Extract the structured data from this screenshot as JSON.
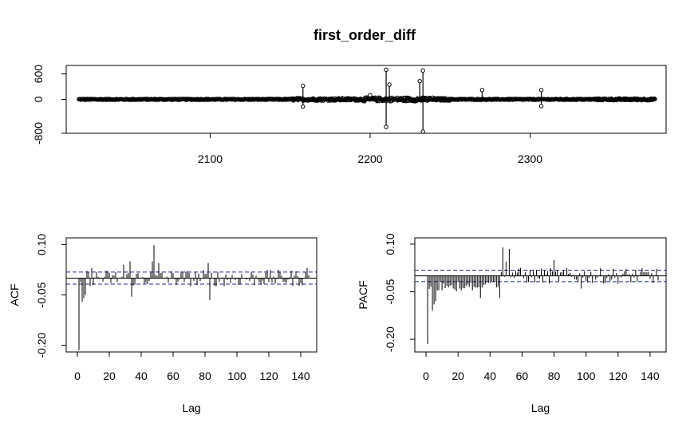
{
  "title": "first_order_diff",
  "chart_data": [
    {
      "type": "line",
      "name": "time-series",
      "title": "first_order_diff",
      "xlabel": "",
      "ylabel": "",
      "xlim": [
        2010,
        2385
      ],
      "ylim": [
        -800,
        800
      ],
      "xticks": [
        2100,
        2200,
        2300
      ],
      "yticks": [
        -800,
        0,
        600
      ],
      "ytick_labels": [
        "-800",
        "0",
        "600"
      ],
      "x_start": 2018,
      "x_end": 2378,
      "spikes": [
        {
          "x": 2158,
          "y": 320
        },
        {
          "x": 2158,
          "y": -170
        },
        {
          "x": 2200,
          "y": 100
        },
        {
          "x": 2210,
          "y": 700
        },
        {
          "x": 2210,
          "y": -650
        },
        {
          "x": 2212,
          "y": 350
        },
        {
          "x": 2231,
          "y": 430
        },
        {
          "x": 2233,
          "y": 680
        },
        {
          "x": 2233,
          "y": -760
        },
        {
          "x": 2270,
          "y": 220
        },
        {
          "x": 2307,
          "y": 220
        },
        {
          "x": 2307,
          "y": -160
        }
      ]
    },
    {
      "type": "bar",
      "name": "acf",
      "xlabel": "Lag",
      "ylabel": "ACF",
      "xlim": [
        -7,
        150
      ],
      "ylim": [
        -0.22,
        0.12
      ],
      "xticks": [
        0,
        20,
        40,
        60,
        80,
        100,
        120,
        140
      ],
      "yticks": [
        -0.2,
        -0.05,
        0.1
      ],
      "ytick_labels": [
        "-0.20",
        "-0.05",
        "0.10"
      ],
      "ci": 0.018,
      "lags": 145,
      "highlight": [
        {
          "lag": 1,
          "value": -0.215
        },
        {
          "lag": 3,
          "value": -0.07
        },
        {
          "lag": 4,
          "value": -0.06
        },
        {
          "lag": 5,
          "value": -0.05
        },
        {
          "lag": 9,
          "value": 0.03
        },
        {
          "lag": 29,
          "value": 0.04
        },
        {
          "lag": 33,
          "value": 0.05
        },
        {
          "lag": 34,
          "value": -0.055
        },
        {
          "lag": 47,
          "value": 0.05
        },
        {
          "lag": 48,
          "value": 0.098
        },
        {
          "lag": 51,
          "value": 0.045
        },
        {
          "lag": 82,
          "value": 0.045
        },
        {
          "lag": 83,
          "value": -0.065
        },
        {
          "lag": 144,
          "value": 0.03
        }
      ]
    },
    {
      "type": "bar",
      "name": "pacf",
      "xlabel": "Lag",
      "ylabel": "PACF",
      "xlim": [
        -7,
        150
      ],
      "ylim": [
        -0.24,
        0.12
      ],
      "xticks": [
        0,
        20,
        40,
        60,
        80,
        100,
        120,
        140
      ],
      "yticks": [
        -0.2,
        -0.05,
        0.1
      ],
      "ytick_labels": [
        "-0.20",
        "-0.05",
        "0.10"
      ],
      "ci": 0.018,
      "lags": 145,
      "highlight": [
        {
          "lag": 1,
          "value": -0.215
        },
        {
          "lag": 4,
          "value": -0.11
        },
        {
          "lag": 5,
          "value": -0.09
        },
        {
          "lag": 6,
          "value": -0.08
        },
        {
          "lag": 34,
          "value": -0.07
        },
        {
          "lag": 46,
          "value": -0.07
        },
        {
          "lag": 48,
          "value": 0.09
        },
        {
          "lag": 50,
          "value": 0.045
        },
        {
          "lag": 52,
          "value": 0.085
        },
        {
          "lag": 80,
          "value": 0.05
        },
        {
          "lag": 97,
          "value": -0.04
        }
      ]
    }
  ]
}
